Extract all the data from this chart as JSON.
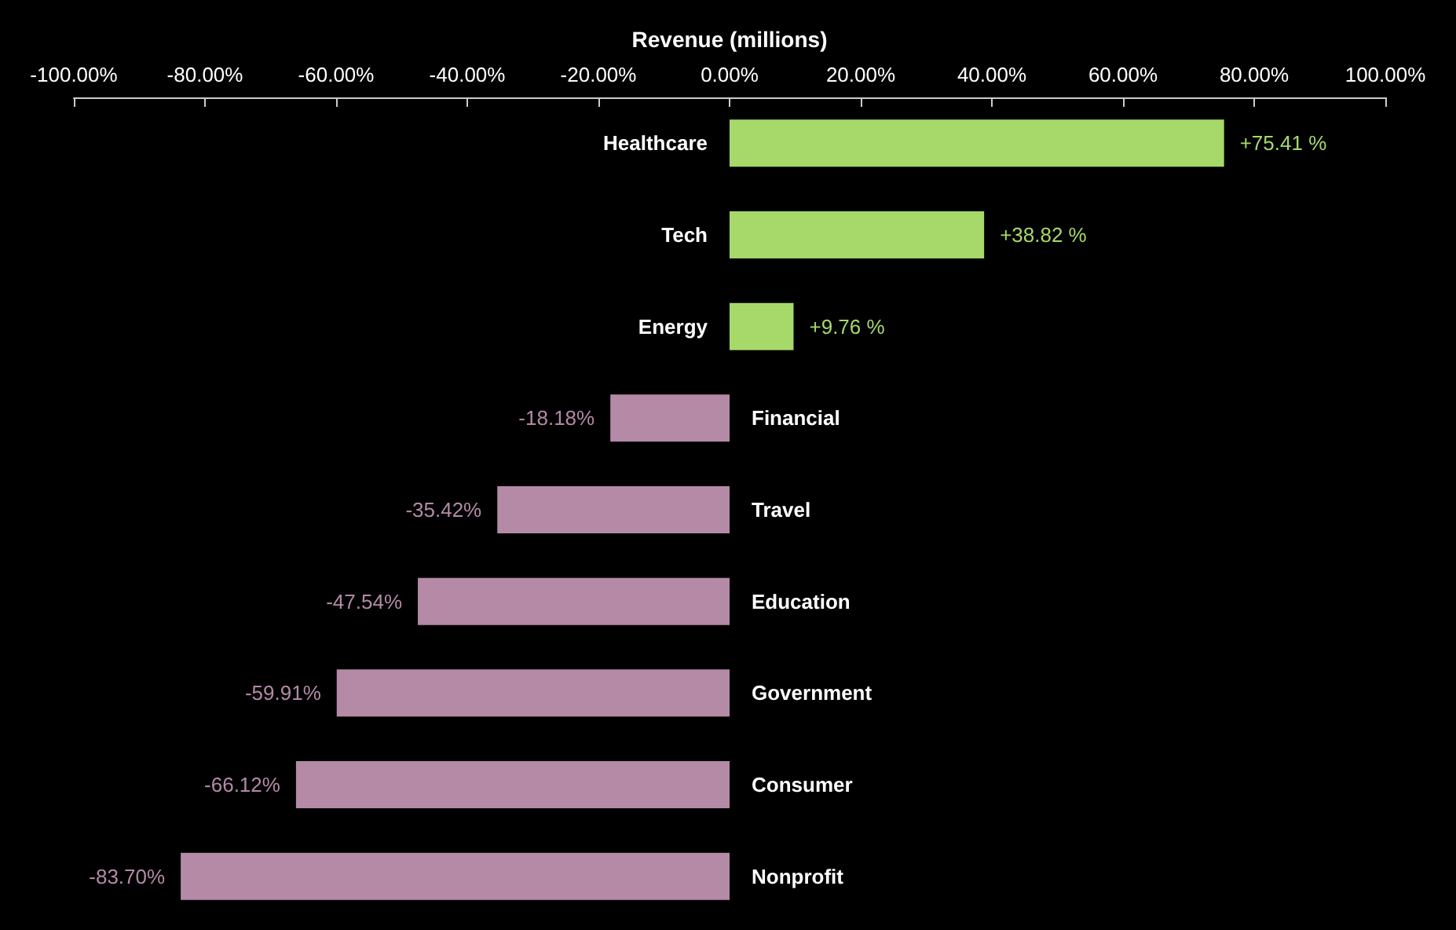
{
  "chart_data": {
    "type": "bar",
    "orientation": "horizontal",
    "xlabel": "Revenue (millions)",
    "categories": [
      "Healthcare",
      "Tech",
      "Energy",
      "Financial",
      "Travel",
      "Education",
      "Government",
      "Consumer",
      "Nonprofit"
    ],
    "values": [
      75.41,
      38.82,
      9.76,
      -18.18,
      -35.42,
      -47.54,
      -59.91,
      -66.12,
      -83.7
    ],
    "colors": [
      "#a6d96a",
      "#a6d96a",
      "#a6d96a",
      "#b48aa6",
      "#b48aa6",
      "#b48aa6",
      "#b48aa6",
      "#b48aa6",
      "#b48aa6"
    ],
    "value_labels": [
      "+75.41 %",
      "+38.82 %",
      "+9.76 %",
      "-18.18%",
      "-35.42%",
      "-47.54%",
      "-59.91%",
      "-66.12%",
      "-83.70%"
    ],
    "xlim": [
      -100,
      100
    ],
    "xticks": [
      {
        "value": -100,
        "label": "-100.00%"
      },
      {
        "value": -80,
        "label": "-80.00%"
      },
      {
        "value": -60,
        "label": "-60.00%"
      },
      {
        "value": -40,
        "label": "-40.00%"
      },
      {
        "value": -20,
        "label": "-20.00%"
      },
      {
        "value": 0,
        "label": "0.00%"
      },
      {
        "value": 20,
        "label": "20.00%"
      },
      {
        "value": 40,
        "label": "40.00%"
      },
      {
        "value": 60,
        "label": "60.00%"
      },
      {
        "value": 80,
        "label": "80.00%"
      },
      {
        "value": 100,
        "label": "100.00%"
      }
    ],
    "grid": false
  }
}
